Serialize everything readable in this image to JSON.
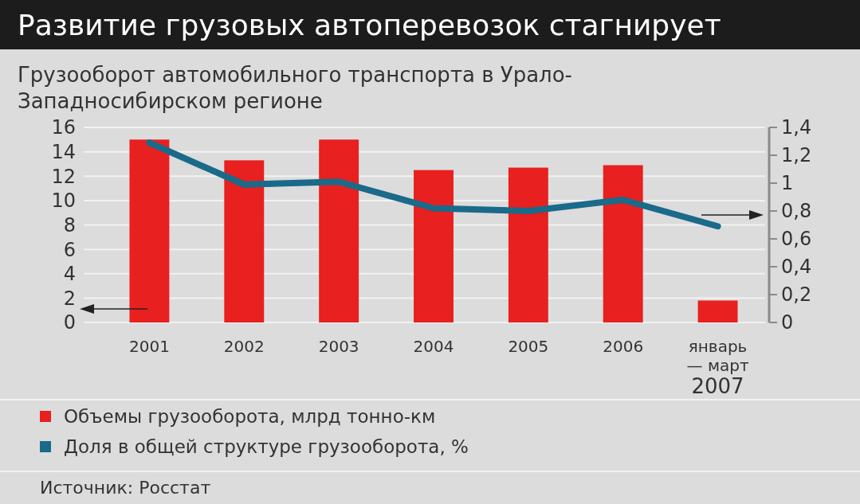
{
  "chart_data": {
    "type": "bar",
    "title": "Развитие грузовых автоперевозок стагнирует",
    "subtitle": "Грузооборот автомобильного транспорта в Урало-Западносибирском регионе",
    "categories": [
      "2001",
      "2002",
      "2003",
      "2004",
      "2005",
      "2006",
      "январь\n— март\n2007"
    ],
    "series": [
      {
        "name": "Объемы грузооборота, млрд тонно-км",
        "color": "#e8201f",
        "values": [
          15.0,
          13.3,
          15.0,
          12.5,
          12.7,
          12.9,
          1.8
        ]
      },
      {
        "name": "Доля в общей структуре грузооборота, %",
        "color": "#1a6a8a",
        "type": "line",
        "axis": "y2",
        "values": [
          1.29,
          0.99,
          1.01,
          0.82,
          0.8,
          0.88,
          0.69
        ]
      }
    ],
    "ylim": [
      0,
      16
    ],
    "yticks": [
      0,
      2,
      4,
      6,
      8,
      10,
      12,
      14,
      16
    ],
    "y2lim": [
      0,
      1.4
    ],
    "y2ticks": [
      0,
      {
        "value": 0.2,
        "label": "0,2"
      },
      {
        "value": 0.4,
        "label": "0,4"
      },
      {
        "value": 0.6,
        "label": "0,6"
      },
      {
        "value": 0.8,
        "label": "0,8"
      },
      1,
      {
        "value": 1.2,
        "label": "1,2"
      },
      {
        "value": 1.4,
        "label": "1,4"
      }
    ],
    "grid": "y",
    "legend": "bottom",
    "marker": "none",
    "line_style": "solid",
    "annotations": [
      "Источник: Росстат"
    ]
  }
}
